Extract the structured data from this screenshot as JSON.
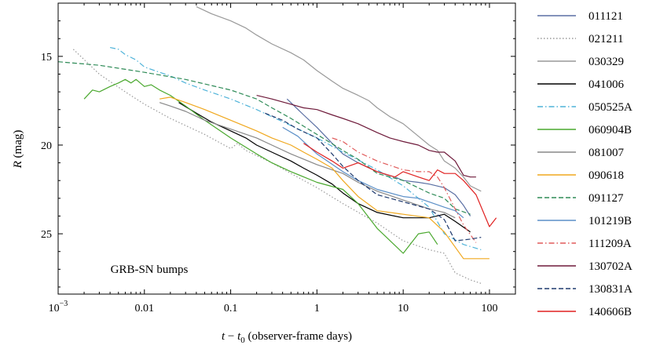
{
  "chart_data": {
    "type": "line",
    "title": "",
    "xlabel": "t − t0 (observer-frame days)",
    "xlabel_parts": {
      "t": "t",
      "minus": " − ",
      "t0_base": "t",
      "t0_sub": "0",
      "rest": " (observer-frame days)"
    },
    "ylabel": "R (mag)",
    "ylabel_parts": {
      "var": "R",
      "unit": " (mag)"
    },
    "xscale": "log",
    "xlim": [
      0.001,
      200
    ],
    "ylim": [
      28.4,
      12.0
    ],
    "y_inverted": true,
    "grid": false,
    "legend_position": "right-outside",
    "annotation": "GRB-SN bumps",
    "x_ticks": [
      {
        "value": 0.001,
        "base": "10",
        "exp": "−3"
      },
      {
        "value": 0.01,
        "label": "0.01"
      },
      {
        "value": 0.1,
        "label": "0.1"
      },
      {
        "value": 1,
        "label": "1"
      },
      {
        "value": 10,
        "label": "10"
      },
      {
        "value": 100,
        "label": "100"
      }
    ],
    "y_ticks": [
      {
        "value": 15,
        "label": "15"
      },
      {
        "value": 20,
        "label": "20"
      },
      {
        "value": 25,
        "label": "25"
      }
    ],
    "series": [
      {
        "name": "011121",
        "color": "#5a6fa3",
        "dash": "solid",
        "x": [
          0.45,
          0.7,
          1,
          1.5,
          2,
          3,
          5,
          8,
          10,
          15,
          20,
          30,
          40,
          50,
          60
        ],
        "y": [
          17.4,
          18.3,
          19.0,
          19.9,
          20.5,
          21.0,
          21.5,
          21.8,
          22.0,
          22.1,
          22.2,
          22.4,
          22.8,
          23.4,
          24.0
        ]
      },
      {
        "name": "021211",
        "color": "#999999",
        "dash": "dotted",
        "x": [
          0.0015,
          0.003,
          0.006,
          0.01,
          0.02,
          0.05,
          0.1,
          0.12,
          0.15,
          0.3,
          0.5,
          1,
          2,
          5,
          10,
          20,
          30,
          40,
          60,
          80
        ],
        "y": [
          14.6,
          16.0,
          17.0,
          17.7,
          18.5,
          19.4,
          20.2,
          19.9,
          20.3,
          21.0,
          21.6,
          22.4,
          23.3,
          24.4,
          25.4,
          25.9,
          26.1,
          27.2,
          27.6,
          27.8
        ]
      },
      {
        "name": "030329",
        "color": "#999999",
        "dash": "solid",
        "x": [
          0.04,
          0.06,
          0.1,
          0.15,
          0.2,
          0.3,
          0.5,
          0.7,
          1,
          1.5,
          2,
          3,
          4,
          5,
          7,
          10,
          15,
          20,
          25,
          30,
          40,
          50,
          60,
          80
        ],
        "y": [
          12.2,
          12.6,
          13.0,
          13.4,
          13.8,
          14.3,
          14.8,
          15.2,
          15.8,
          16.4,
          16.8,
          17.2,
          17.5,
          17.9,
          18.4,
          18.8,
          19.5,
          20.0,
          20.3,
          20.9,
          21.3,
          21.8,
          22.3,
          22.6
        ]
      },
      {
        "name": "041006",
        "color": "#000000",
        "dash": "solid",
        "x": [
          0.025,
          0.04,
          0.06,
          0.1,
          0.15,
          0.2,
          0.3,
          0.5,
          0.7,
          1,
          1.5,
          2,
          3,
          5,
          10,
          20,
          30,
          40,
          60
        ],
        "y": [
          17.6,
          18.2,
          18.7,
          19.2,
          19.6,
          20.0,
          20.4,
          20.9,
          21.3,
          21.7,
          22.2,
          22.7,
          23.3,
          23.8,
          24.1,
          24.1,
          23.9,
          24.3,
          24.9
        ]
      },
      {
        "name": "050525A",
        "color": "#4fb3d9",
        "dash": "dashdot",
        "x": [
          0.004,
          0.005,
          0.006,
          0.008,
          0.01,
          0.015,
          0.02,
          0.03,
          0.05,
          0.1,
          0.2,
          0.3,
          0.5,
          1,
          2,
          5,
          10,
          20,
          30,
          50,
          80
        ],
        "y": [
          14.5,
          14.6,
          14.9,
          15.2,
          15.6,
          15.9,
          16.1,
          16.5,
          16.9,
          17.4,
          18.0,
          18.4,
          18.9,
          19.6,
          20.4,
          21.4,
          22.3,
          23.5,
          25.0,
          25.6,
          25.9
        ]
      },
      {
        "name": "060904B",
        "color": "#4aa82e",
        "dash": "solid",
        "x": [
          0.002,
          0.0025,
          0.003,
          0.004,
          0.005,
          0.006,
          0.007,
          0.008,
          0.01,
          0.012,
          0.015,
          0.02,
          0.03,
          0.05,
          0.1,
          0.2,
          0.3,
          0.5,
          1,
          2,
          3,
          5,
          10,
          15,
          20,
          25
        ],
        "y": [
          17.4,
          16.9,
          17.0,
          16.7,
          16.5,
          16.3,
          16.5,
          16.3,
          16.7,
          16.6,
          16.9,
          17.2,
          17.8,
          18.6,
          19.6,
          20.5,
          21.0,
          21.5,
          22.1,
          22.5,
          23.3,
          24.7,
          26.1,
          25.0,
          24.9,
          25.6
        ]
      },
      {
        "name": "081007",
        "color": "#888888",
        "dash": "solid",
        "x": [
          0.015,
          0.02,
          0.03,
          0.05,
          0.1,
          0.2,
          0.3,
          0.5,
          1,
          2,
          3,
          5,
          10,
          20,
          30,
          40
        ],
        "y": [
          17.6,
          17.8,
          18.1,
          18.6,
          19.1,
          19.6,
          20.0,
          20.5,
          21.1,
          21.6,
          22.1,
          22.6,
          23.1,
          23.6,
          23.8,
          24.1
        ]
      },
      {
        "name": "090618",
        "color": "#f0a81e",
        "dash": "solid",
        "x": [
          0.015,
          0.02,
          0.03,
          0.05,
          0.1,
          0.2,
          0.3,
          0.5,
          0.7,
          1,
          1.5,
          2,
          3,
          5,
          10,
          20,
          30,
          50,
          100
        ],
        "y": [
          17.4,
          17.3,
          17.6,
          18.0,
          18.6,
          19.2,
          19.6,
          20.0,
          20.4,
          20.8,
          21.3,
          22.0,
          22.9,
          23.7,
          23.9,
          24.1,
          24.9,
          26.4,
          26.4
        ]
      },
      {
        "name": "091127",
        "color": "#2e8b57",
        "dash": "dashed",
        "x": [
          0.001,
          0.003,
          0.01,
          0.03,
          0.1,
          0.2,
          0.3,
          0.5,
          1,
          2,
          3,
          5,
          10,
          20,
          30,
          40,
          60
        ],
        "y": [
          15.3,
          15.5,
          15.9,
          16.3,
          16.9,
          17.4,
          17.9,
          18.5,
          19.4,
          20.3,
          20.8,
          21.6,
          22.0,
          22.7,
          23.0,
          23.6,
          23.9
        ]
      },
      {
        "name": "101219B",
        "color": "#5b8fc7",
        "dash": "solid",
        "x": [
          0.4,
          0.6,
          1,
          2,
          3,
          5,
          10,
          15,
          20,
          30,
          40,
          50
        ],
        "y": [
          19.0,
          19.5,
          20.5,
          21.5,
          22.0,
          22.5,
          22.9,
          23.0,
          23.2,
          23.5,
          23.7,
          24.1
        ]
      },
      {
        "name": "111209A",
        "color": "#e05a5a",
        "dash": "dashdot",
        "x": [
          1.5,
          2,
          3,
          5,
          10,
          15,
          20,
          25,
          30,
          40,
          50,
          70
        ],
        "y": [
          19.6,
          19.8,
          20.4,
          20.9,
          21.4,
          21.5,
          21.5,
          21.8,
          22.4,
          23.6,
          24.5,
          25.5
        ]
      },
      {
        "name": "130702A",
        "color": "#6e1a3a",
        "dash": "solid",
        "x": [
          0.2,
          0.3,
          0.5,
          0.7,
          1,
          1.5,
          2,
          3,
          5,
          7,
          10,
          15,
          20,
          25,
          30,
          40,
          50,
          60,
          70
        ],
        "y": [
          17.2,
          17.4,
          17.7,
          17.9,
          18.0,
          18.3,
          18.5,
          18.8,
          19.3,
          19.6,
          19.8,
          20.0,
          20.3,
          20.4,
          20.4,
          20.9,
          21.7,
          21.8,
          21.8
        ]
      },
      {
        "name": "130831A",
        "color": "#1f3a6e",
        "dash": "dashed",
        "x": [
          0.25,
          0.4,
          0.6,
          1,
          1.5,
          2,
          3,
          5,
          10,
          20,
          30,
          40,
          60,
          80
        ],
        "y": [
          18.2,
          18.6,
          19.1,
          19.6,
          20.5,
          21.2,
          22.0,
          22.8,
          23.2,
          23.6,
          24.2,
          25.4,
          25.3,
          25.2
        ]
      },
      {
        "name": "140606B",
        "color": "#e02020",
        "dash": "solid",
        "x": [
          0.7,
          1,
          1.5,
          2,
          3,
          5,
          8,
          10,
          15,
          20,
          25,
          30,
          40,
          50,
          70,
          100,
          120
        ],
        "y": [
          19.9,
          20.4,
          20.9,
          21.3,
          21.0,
          21.5,
          21.8,
          21.5,
          21.8,
          22.0,
          21.4,
          21.6,
          21.6,
          22.0,
          22.8,
          24.6,
          24.1
        ]
      }
    ]
  }
}
